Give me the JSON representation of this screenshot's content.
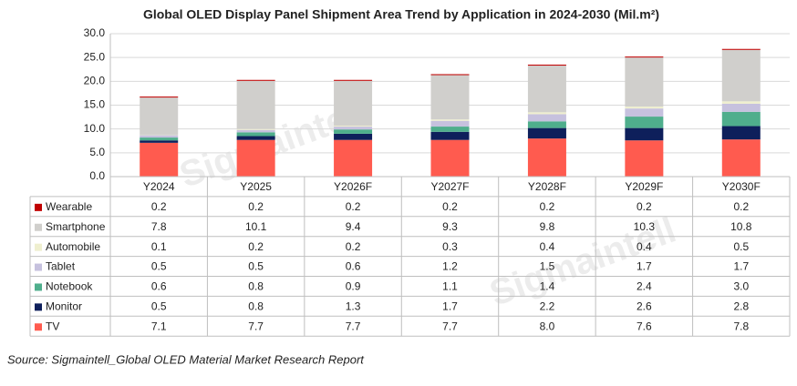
{
  "chart_data": {
    "type": "stacked-bar",
    "title": "Global OLED Display Panel Shipment Area Trend by Application in 2024-2030 (Mil.m²)",
    "source": "Source: Sigmaintell_Global OLED Material Market Research Report",
    "watermark": "Sigmaintell",
    "categories": [
      "Y2024",
      "Y2025",
      "Y2026F",
      "Y2027F",
      "Y2028F",
      "Y2029F",
      "Y2030F"
    ],
    "ylim": [
      0,
      30
    ],
    "yticks": [
      {
        "value": 0,
        "label": "0.0"
      },
      {
        "value": 5,
        "label": "5.0"
      },
      {
        "value": 10,
        "label": "10.0"
      },
      {
        "value": 15,
        "label": "15.0"
      },
      {
        "value": 20,
        "label": "20.0"
      },
      {
        "value": 25,
        "label": "25.0"
      },
      {
        "value": 30,
        "label": "30.0"
      }
    ],
    "grid": true,
    "series": [
      {
        "name": "TV",
        "color": "#ff5b4f",
        "values": [
          7.1,
          7.7,
          7.7,
          7.7,
          8.0,
          7.6,
          7.8
        ],
        "value_labels": [
          "7.1",
          "7.7",
          "7.7",
          "7.7",
          "8.0",
          "7.6",
          "7.8"
        ]
      },
      {
        "name": "Monitor",
        "color": "#0e1f5b",
        "values": [
          0.5,
          0.8,
          1.3,
          1.7,
          2.2,
          2.6,
          2.8
        ],
        "value_labels": [
          "0.5",
          "0.8",
          "1.3",
          "1.7",
          "2.2",
          "2.6",
          "2.8"
        ]
      },
      {
        "name": "Notebook",
        "color": "#4fae8c",
        "values": [
          0.6,
          0.8,
          0.9,
          1.1,
          1.4,
          2.4,
          3.0
        ],
        "value_labels": [
          "0.6",
          "0.8",
          "0.9",
          "1.1",
          "1.4",
          "2.4",
          "3.0"
        ]
      },
      {
        "name": "Tablet",
        "color": "#c6c1de",
        "values": [
          0.5,
          0.5,
          0.6,
          1.2,
          1.5,
          1.7,
          1.7
        ],
        "value_labels": [
          "0.5",
          "0.5",
          "0.6",
          "1.2",
          "1.5",
          "1.7",
          "1.7"
        ]
      },
      {
        "name": "Automobile",
        "color": "#efefcf",
        "values": [
          0.1,
          0.2,
          0.2,
          0.3,
          0.4,
          0.4,
          0.5
        ],
        "value_labels": [
          "0.1",
          "0.2",
          "0.2",
          "0.3",
          "0.4",
          "0.4",
          "0.5"
        ]
      },
      {
        "name": "Smartphone",
        "color": "#d0cfcc",
        "values": [
          7.8,
          10.1,
          9.4,
          9.3,
          9.8,
          10.3,
          10.8
        ],
        "value_labels": [
          "7.8",
          "10.1",
          "9.4",
          "9.3",
          "9.8",
          "10.3",
          "10.8"
        ]
      },
      {
        "name": "Wearable",
        "color": "#c00000",
        "values": [
          0.2,
          0.2,
          0.2,
          0.2,
          0.2,
          0.2,
          0.2
        ],
        "value_labels": [
          "0.2",
          "0.2",
          "0.2",
          "0.2",
          "0.2",
          "0.2",
          "0.2"
        ]
      }
    ]
  }
}
